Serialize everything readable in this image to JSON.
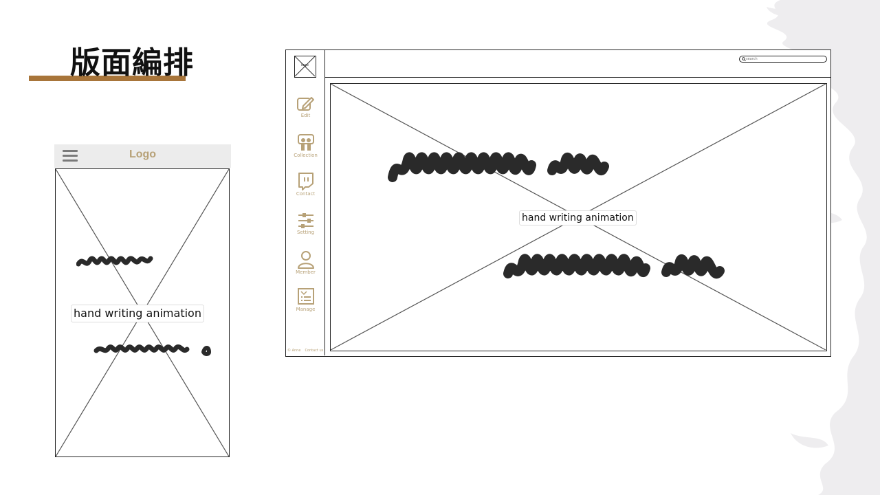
{
  "slide": {
    "title": "版面編排",
    "accent_color": "#a8753a"
  },
  "mobile": {
    "menu_icon": "hamburger-icon",
    "logo": "Logo",
    "image_icon": "image-placeholder-icon",
    "caption": "hand writing animation"
  },
  "desktop": {
    "logo": "logo",
    "search": {
      "placeholder": "search"
    },
    "nav": [
      {
        "label": "Edit",
        "icon": "edit-icon"
      },
      {
        "label": "Collection",
        "icon": "slideshare-icon"
      },
      {
        "label": "Contact",
        "icon": "twitch-icon"
      },
      {
        "label": "Setting",
        "icon": "sliders-icon"
      },
      {
        "label": "Member",
        "icon": "user-icon"
      },
      {
        "label": "Manage",
        "icon": "manage-icon"
      }
    ],
    "footer": {
      "copyright": "© Anne",
      "contact": "Contact us"
    },
    "caption": "hand writing animation",
    "icon_color": "#b7a177"
  }
}
